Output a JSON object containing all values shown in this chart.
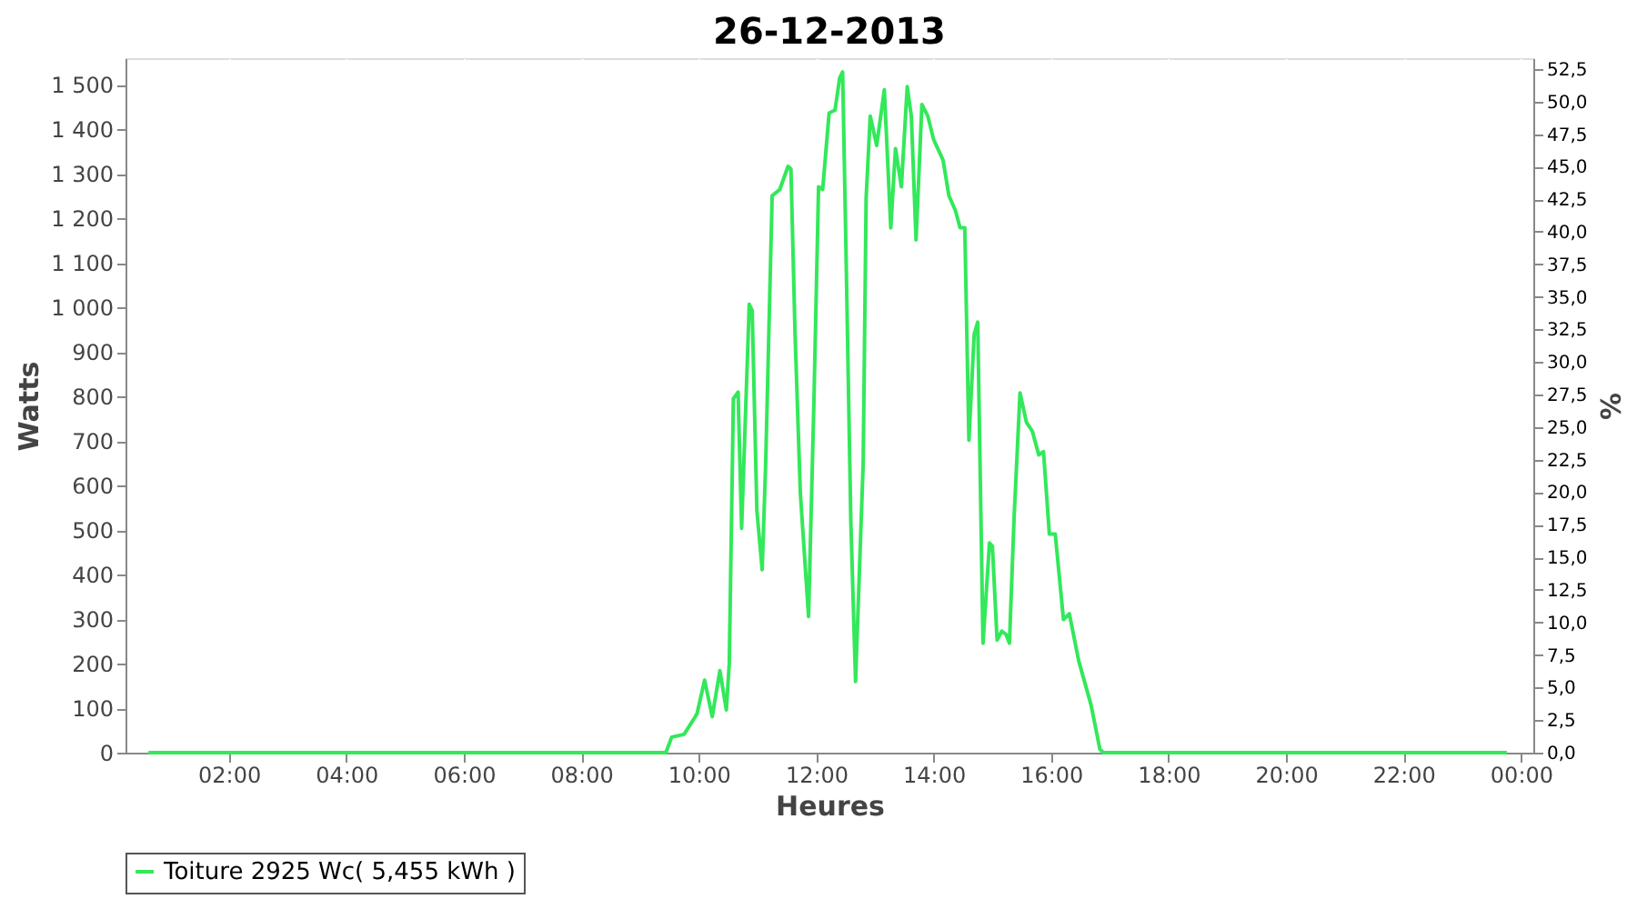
{
  "chart_data": {
    "type": "line",
    "title": "26-12-2013",
    "xlabel": "Heures",
    "ylabel": "Watts",
    "y2label": "%",
    "xlim": [
      0.24,
      24.21
    ],
    "xticks": [
      {
        "value": 2,
        "label": "02:00"
      },
      {
        "value": 4,
        "label": "04:00"
      },
      {
        "value": 6,
        "label": "06:00"
      },
      {
        "value": 8,
        "label": "08:00"
      },
      {
        "value": 10,
        "label": "10:00"
      },
      {
        "value": 12,
        "label": "12:00"
      },
      {
        "value": 14,
        "label": "14:00"
      },
      {
        "value": 16,
        "label": "16:00"
      },
      {
        "value": 18,
        "label": "18:00"
      },
      {
        "value": 20,
        "label": "20:00"
      },
      {
        "value": 22,
        "label": "22:00"
      },
      {
        "value": 24,
        "label": "00:00"
      }
    ],
    "ylim": [
      0,
      1560
    ],
    "yticks": [
      0,
      100,
      200,
      300,
      400,
      500,
      600,
      700,
      800,
      900,
      {
        "value": 1000,
        "label": "1 000"
      },
      {
        "value": 1100,
        "label": "1 100"
      },
      {
        "value": 1200,
        "label": "1 200"
      },
      {
        "value": 1300,
        "label": "1 300"
      },
      {
        "value": 1400,
        "label": "1 400"
      },
      {
        "value": 1500,
        "label": "1 500"
      }
    ],
    "y2lim": [
      0,
      53.33
    ],
    "y2ticks": [
      {
        "value": 0,
        "label": "0,0"
      },
      {
        "value": 2.5,
        "label": "2,5"
      },
      {
        "value": 5,
        "label": "5,0"
      },
      {
        "value": 7.5,
        "label": "7,5"
      },
      {
        "value": 10,
        "label": "10,0"
      },
      {
        "value": 12.5,
        "label": "12,5"
      },
      {
        "value": 15,
        "label": "15,0"
      },
      {
        "value": 17.5,
        "label": "17,5"
      },
      {
        "value": 20,
        "label": "20,0"
      },
      {
        "value": 22.5,
        "label": "22,5"
      },
      {
        "value": 25,
        "label": "25,0"
      },
      {
        "value": 27.5,
        "label": "27,5"
      },
      {
        "value": 30,
        "label": "30,0"
      },
      {
        "value": 32.5,
        "label": "32,5"
      },
      {
        "value": 35,
        "label": "35,0"
      },
      {
        "value": 37.5,
        "label": "37,5"
      },
      {
        "value": 40,
        "label": "40,0"
      },
      {
        "value": 42.5,
        "label": "42,5"
      },
      {
        "value": 45,
        "label": "45,0"
      },
      {
        "value": 47.5,
        "label": "47,5"
      },
      {
        "value": 50,
        "label": "50,0"
      },
      {
        "value": 52.5,
        "label": "52,5"
      }
    ],
    "grid": true,
    "legend": "bottom",
    "marker": "none",
    "line_style": "solid",
    "series": [
      {
        "name": "Toiture 2925 Wc( 5,455 kWh )",
        "color": "#33e85a",
        "x": [
          0.63,
          9.44,
          9.54,
          9.75,
          9.97,
          10.1,
          10.23,
          10.36,
          10.47,
          10.52,
          10.59,
          10.67,
          10.73,
          10.86,
          10.91,
          10.99,
          11.08,
          11.14,
          11.25,
          11.38,
          11.52,
          11.57,
          11.64,
          11.73,
          11.87,
          11.96,
          12.04,
          12.11,
          12.22,
          12.32,
          12.4,
          12.45,
          12.5,
          12.59,
          12.67,
          12.8,
          12.85,
          12.92,
          13.03,
          13.16,
          13.27,
          13.35,
          13.45,
          13.55,
          13.62,
          13.7,
          13.8,
          13.9,
          14.0,
          14.16,
          14.26,
          14.37,
          14.45,
          14.53,
          14.6,
          14.69,
          14.75,
          14.84,
          14.95,
          15.0,
          15.08,
          15.16,
          15.23,
          15.29,
          15.37,
          15.47,
          15.58,
          15.68,
          15.79,
          15.87,
          15.97,
          16.07,
          16.21,
          16.31,
          16.47,
          16.68,
          16.83,
          16.89,
          23.76
        ],
        "values": [
          0,
          0,
          35,
          41,
          87,
          163,
          81,
          184,
          96,
          200,
          795,
          810,
          504,
          1007,
          993,
          544,
          411,
          650,
          1251,
          1265,
          1317,
          1311,
          940,
          583,
          306,
          782,
          1271,
          1265,
          1437,
          1443,
          1516,
          1529,
          1179,
          517,
          160,
          650,
          1245,
          1430,
          1364,
          1489,
          1179,
          1357,
          1271,
          1496,
          1430,
          1152,
          1456,
          1430,
          1377,
          1331,
          1251,
          1218,
          1179,
          1179,
          702,
          940,
          967,
          246,
          471,
          464,
          253,
          273,
          266,
          246,
          530,
          808,
          742,
          722,
          669,
          676,
          491,
          491,
          299,
          312,
          206,
          107,
          8,
          0,
          0
        ]
      }
    ]
  }
}
